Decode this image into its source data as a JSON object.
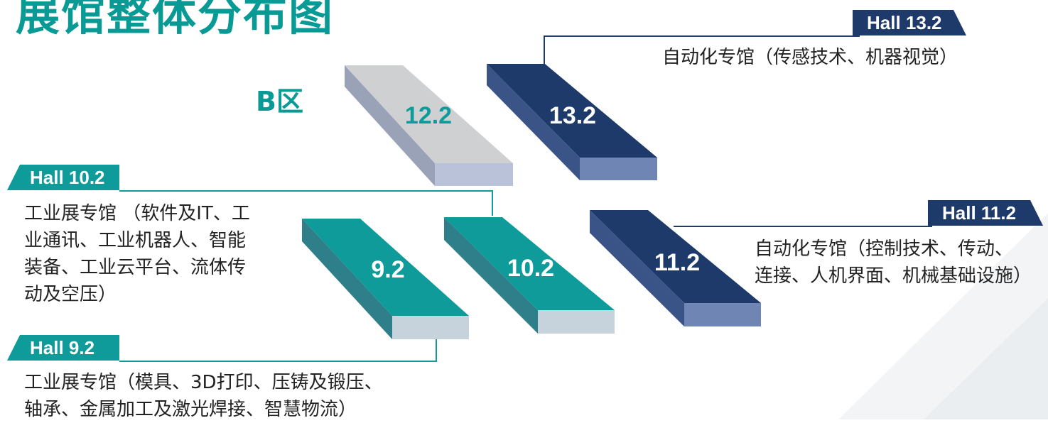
{
  "title": "展馆整体分布图",
  "zone": "B区",
  "colors": {
    "teal": "#0f9b99",
    "navy": "#1d3a6b",
    "gray": "#cfd0d2",
    "text": "#222222"
  },
  "halls": [
    {
      "block": "12.2"
    },
    {
      "block": "13.2",
      "tag": "Hall 13.2",
      "description": "自动化专馆（传感技术、机器视觉）"
    },
    {
      "block": "10.2",
      "tag": "Hall 10.2",
      "description_lines": [
        "工业展专馆 （软件及IT、工",
        "业通讯、工业机器人、智能",
        "装备、工业云平台、流体传",
        "动及空压）"
      ]
    },
    {
      "block": "11.2",
      "tag": "Hall 11.2",
      "description_lines": [
        "自动化专馆（控制技术、传动、",
        "连接、人机界面、机械基础设施）"
      ]
    },
    {
      "block": "9.2",
      "tag": "Hall 9.2",
      "description_lines": [
        "工业展专馆（模具、3D打印、压铸及锻压、",
        "轴承、金属加工及激光焊接、智慧物流）"
      ]
    }
  ]
}
